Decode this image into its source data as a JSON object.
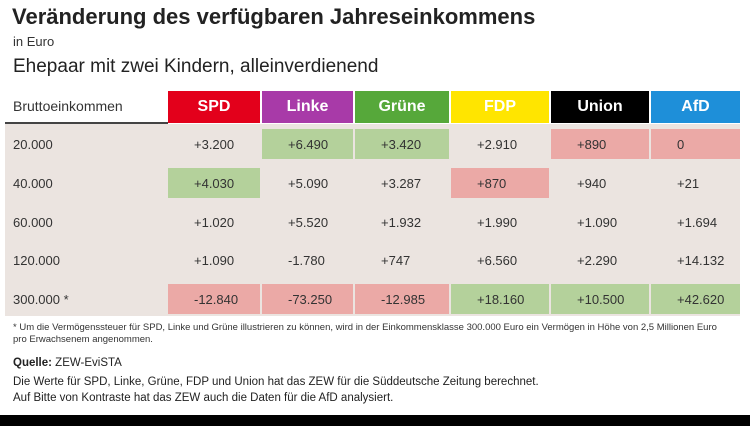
{
  "title": "Veränderung des verfügbaren Jahreseinkommens",
  "unit": "in Euro",
  "subtitle": "Ehepaar mit zwei Kindern, alleinverdienend",
  "row_header": "Bruttoeinkommen",
  "footnote": "* Um die Vermögenssteuer für SPD, Linke und Grüne illustrieren zu können, wird in der Einkommensklasse 300.000 Euro ein Vermögen in Höhe von 2,5 Millionen Euro pro Erwachsenem angenommen.",
  "source_label": "Quelle:",
  "source_value": " ZEW-EviSTA",
  "note_1": "Die Werte für SPD, Linke, Grüne, FDP und Union hat das ZEW für die Süddeutsche Zeitung berechnet.",
  "note_2": "Auf Bitte von Kontraste hat das ZEW auch die Daten für die AfD analysiert.",
  "chart_data": {
    "type": "table",
    "columns": [
      {
        "name": "SPD",
        "color": "#e3001b",
        "text_color": "#ffffff"
      },
      {
        "name": "Linke",
        "color": "#a83aa8",
        "text_color": "#ffffff"
      },
      {
        "name": "Grüne",
        "color": "#56a83a",
        "text_color": "#ffffff"
      },
      {
        "name": "FDP",
        "color": "#ffe500",
        "text_color": "#ffffff"
      },
      {
        "name": "Union",
        "color": "#000000",
        "text_color": "#ffffff"
      },
      {
        "name": "AfD",
        "color": "#1e8fd9",
        "text_color": "#ffffff"
      }
    ],
    "rows": [
      {
        "label": "20.000",
        "values": [
          "+3.200",
          "+6.490",
          "+3.420",
          "+2.910",
          "+890",
          "0"
        ],
        "highlight": [
          "",
          "max",
          "max",
          "",
          "min",
          "min"
        ]
      },
      {
        "label": "40.000",
        "values": [
          "+4.030",
          "+5.090",
          "+3.287",
          "+870",
          "+940",
          "+21"
        ],
        "highlight": [
          "max",
          "",
          "",
          "min",
          "",
          ""
        ]
      },
      {
        "label": "60.000",
        "values": [
          "+1.020",
          "+5.520",
          "+1.932",
          "+1.990",
          "+1.090",
          "+1.694"
        ],
        "highlight": [
          "",
          "",
          "",
          "",
          "",
          ""
        ]
      },
      {
        "label": "120.000",
        "values": [
          "+1.090",
          "-1.780",
          "+747",
          "+6.560",
          "+2.290",
          "+14.132"
        ],
        "highlight": [
          "",
          "",
          "",
          "",
          "",
          ""
        ]
      },
      {
        "label": "300.000 *",
        "values": [
          "-12.840",
          "-73.250",
          "-12.985",
          "+18.160",
          "+10.500",
          "+42.620"
        ],
        "highlight": [
          "min",
          "min",
          "min",
          "max",
          "max",
          "max"
        ]
      }
    ],
    "highlight_colors": {
      "max": "#b4d19b",
      "min": "#eba9a6"
    }
  }
}
